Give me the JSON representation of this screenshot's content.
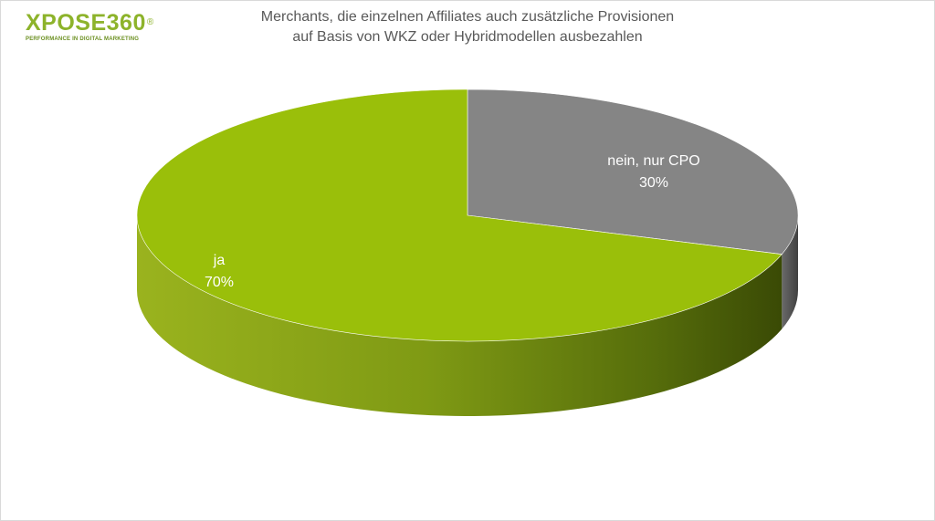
{
  "logo": {
    "name": "XPOSE360",
    "registered": "®",
    "tagline": "PERFORMANCE IN DIGITAL MARKETING"
  },
  "chart_data": {
    "type": "pie",
    "title_lines": [
      "Merchants, die einzelnen Affiliates auch zusätzliche Provisionen",
      "auf Basis von WKZ oder Hybridmodellen ausbezahlen"
    ],
    "slices": [
      {
        "label": "nein, nur CPO",
        "value": 30,
        "value_label": "30%",
        "color": "#858585"
      },
      {
        "label": "ja",
        "value": 70,
        "value_label": "70%",
        "color": "#9abf0a"
      }
    ],
    "legend": "none",
    "style": "3d"
  }
}
